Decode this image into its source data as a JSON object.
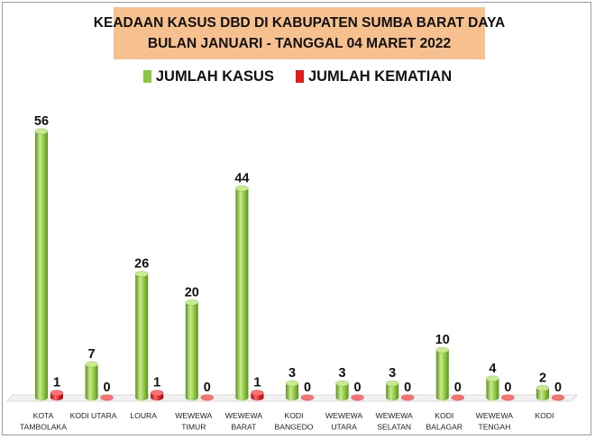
{
  "title_lines": [
    "KEADAAN KASUS DBD  DI KABUPATEN SUMBA BARAT DAYA",
    "BULAN JANUARI - TANGGAL 04 MARET 2022"
  ],
  "colors": {
    "kasus": "#8cc63f",
    "kasus_dark": "#5e8f22",
    "kasus_light": "#c8ec8c",
    "kematian": "#e21a1a",
    "kematian_dark": "#9a0c0c",
    "title_bg": "#f7c08f"
  },
  "chart_data": {
    "type": "bar",
    "title": "KEADAAN KASUS DBD  DI KABUPATEN SUMBA BARAT DAYA / BULAN JANUARI - TANGGAL 04 MARET 2022",
    "categories": [
      [
        "KOTA",
        "TAMBOLAKA"
      ],
      [
        "KODI UTARA"
      ],
      [
        "LOURA"
      ],
      [
        "WEWEWA",
        "TIMUR"
      ],
      [
        "WEWEWA",
        "BARAT"
      ],
      [
        "KODI",
        "BANGEDO"
      ],
      [
        "WEWEWA",
        "UTARA"
      ],
      [
        "WEWEWA",
        "SELATAN"
      ],
      [
        "KODI",
        "BALAGAR"
      ],
      [
        "WEWEWA",
        "TENGAH"
      ],
      [
        "KODI"
      ]
    ],
    "series": [
      {
        "name": "JUMLAH KASUS",
        "values": [
          56,
          7,
          26,
          20,
          44,
          3,
          3,
          3,
          10,
          4,
          2
        ]
      },
      {
        "name": "JUMLAH KEMATIAN",
        "values": [
          1,
          0,
          1,
          0,
          1,
          0,
          0,
          0,
          0,
          0,
          0
        ]
      }
    ],
    "ylim": [
      0,
      56
    ],
    "grid": false,
    "legend_position": "top"
  }
}
